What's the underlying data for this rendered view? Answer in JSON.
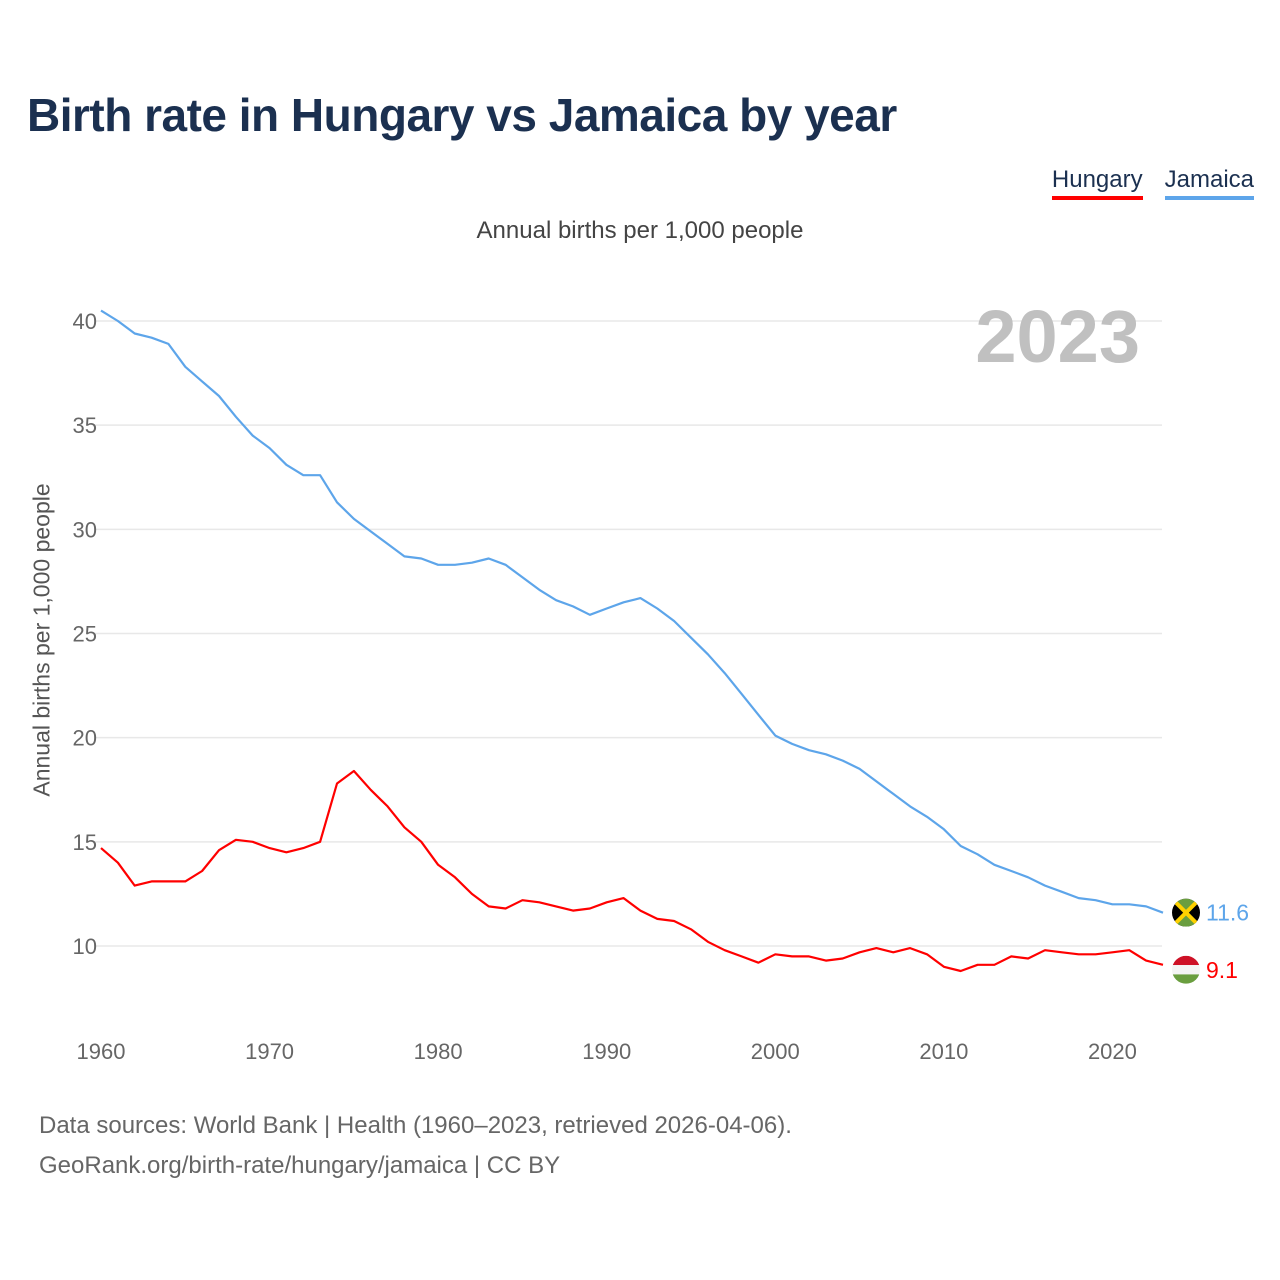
{
  "chart_data": {
    "type": "line",
    "title": "Birth rate in Hungary vs Jamaica by year",
    "subtitle": "Annual births per 1,000 people",
    "xlabel": "",
    "ylabel": "Annual births per 1,000 people",
    "year_label": "2023",
    "xlim": [
      1960,
      2023
    ],
    "ylim": [
      7,
      41
    ],
    "x_ticks": [
      1960,
      1970,
      1980,
      1990,
      2000,
      2010,
      2020
    ],
    "y_ticks": [
      10,
      15,
      20,
      25,
      30,
      35,
      40
    ],
    "grid": true,
    "legend_position": "top-right",
    "x": [
      1960,
      1961,
      1962,
      1963,
      1964,
      1965,
      1966,
      1967,
      1968,
      1969,
      1970,
      1971,
      1972,
      1973,
      1974,
      1975,
      1976,
      1977,
      1978,
      1979,
      1980,
      1981,
      1982,
      1983,
      1984,
      1985,
      1986,
      1987,
      1988,
      1989,
      1990,
      1991,
      1992,
      1993,
      1994,
      1995,
      1996,
      1997,
      1998,
      1999,
      2000,
      2001,
      2002,
      2003,
      2004,
      2005,
      2006,
      2007,
      2008,
      2009,
      2010,
      2011,
      2012,
      2013,
      2014,
      2015,
      2016,
      2017,
      2018,
      2019,
      2020,
      2021,
      2022,
      2023
    ],
    "series": [
      {
        "name": "Hungary",
        "color": "#ff0000",
        "end_label": "9.1",
        "flag": "hungary-flag",
        "values": [
          14.7,
          14.0,
          12.9,
          13.1,
          13.1,
          13.1,
          13.6,
          14.6,
          15.1,
          15.0,
          14.7,
          14.5,
          14.7,
          15.0,
          17.8,
          18.4,
          17.5,
          16.7,
          15.7,
          15.0,
          13.9,
          13.3,
          12.5,
          11.9,
          11.8,
          12.2,
          12.1,
          11.9,
          11.7,
          11.8,
          12.1,
          12.3,
          11.7,
          11.3,
          11.2,
          10.8,
          10.2,
          9.8,
          9.5,
          9.2,
          9.6,
          9.5,
          9.5,
          9.3,
          9.4,
          9.7,
          9.9,
          9.7,
          9.9,
          9.6,
          9.0,
          8.8,
          9.1,
          9.1,
          9.5,
          9.4,
          9.8,
          9.7,
          9.6,
          9.6,
          9.7,
          9.8,
          9.3,
          9.1
        ]
      },
      {
        "name": "Jamaica",
        "color": "#5da5ea",
        "end_label": "11.6",
        "flag": "jamaica-flag",
        "values": [
          40.5,
          40.0,
          39.4,
          39.2,
          38.9,
          37.8,
          37.1,
          36.4,
          35.4,
          34.5,
          33.9,
          33.1,
          32.6,
          32.6,
          31.3,
          30.5,
          29.9,
          29.3,
          28.7,
          28.6,
          28.3,
          28.3,
          28.4,
          28.6,
          28.3,
          27.7,
          27.1,
          26.6,
          26.3,
          25.9,
          26.2,
          26.5,
          26.7,
          26.2,
          25.6,
          24.8,
          24.0,
          23.1,
          22.1,
          21.1,
          20.1,
          19.7,
          19.4,
          19.2,
          18.9,
          18.5,
          17.9,
          17.3,
          16.7,
          16.2,
          15.6,
          14.8,
          14.4,
          13.9,
          13.6,
          13.3,
          12.9,
          12.6,
          12.3,
          12.2,
          12.0,
          12.0,
          11.9,
          11.6
        ]
      }
    ]
  },
  "footer": {
    "line1": "Data sources: World Bank | Health (1960–2023, retrieved 2026-04-06).",
    "line2": "GeoRank.org/birth-rate/hungary/jamaica | CC BY"
  }
}
